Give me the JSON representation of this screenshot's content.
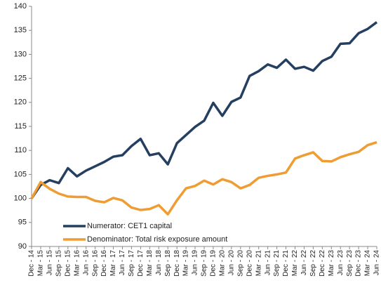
{
  "chart_data": {
    "type": "line",
    "categories": [
      "Dec - 14",
      "Mar - 15",
      "Jun - 15",
      "Sep - 15",
      "Dec - 15",
      "Mar - 16",
      "Jun - 16",
      "Sep - 16",
      "Dec - 16",
      "Mar - 17",
      "Jun - 17",
      "Sep - 17",
      "Dec - 17",
      "Mar - 18",
      "Jun - 18",
      "Sep - 18",
      "Dec - 18",
      "Mar - 19",
      "Jun - 19",
      "Sep - 19",
      "Dec - 19",
      "Mar - 20",
      "Jun - 20",
      "Sep - 20",
      "Dec - 20",
      "Mar - 21",
      "Jun - 21",
      "Sep - 21",
      "Dec - 21",
      "Mar - 22",
      "Jun - 22",
      "Sep - 22",
      "Dec - 22",
      "Mar - 23",
      "Jun - 23",
      "Sep - 23",
      "Dec - 23",
      "Mar - 24",
      "Jun - 24"
    ],
    "series": [
      {
        "name": "Numerator: CET1 capital",
        "color": "#243f60",
        "values": [
          100,
          102.8,
          103.8,
          103.2,
          106.3,
          104.6,
          105.8,
          106.7,
          107.6,
          108.7,
          109,
          110.9,
          112.4,
          109,
          109.4,
          107.1,
          111.5,
          113.2,
          114.9,
          116.2,
          119.9,
          117.2,
          120.1,
          121,
          125.5,
          126.5,
          127.9,
          127.2,
          128.9,
          127.0,
          127.4,
          126.6,
          128.6,
          129.5,
          132.2,
          132.3,
          134.4,
          135.3,
          136.7
        ]
      },
      {
        "name": "Denominator: Total risk exposure amount",
        "color": "#ef9c33",
        "values": [
          100,
          103.4,
          102,
          101,
          100.4,
          100.3,
          100.3,
          99.5,
          99.2,
          100.1,
          99.6,
          98.1,
          97.6,
          97.8,
          98.6,
          96.7,
          99.6,
          102.1,
          102.6,
          103.7,
          102.9,
          104.0,
          103.4,
          102.1,
          102.8,
          104.3,
          104.7,
          105.0,
          105.4,
          108.3,
          109.0,
          109.6,
          107.8,
          107.7,
          108.6,
          109.2,
          109.7,
          111.1,
          111.7
        ]
      }
    ],
    "ylim": [
      90,
      140
    ],
    "yticks": [
      90,
      95,
      100,
      105,
      110,
      115,
      120,
      125,
      130,
      135,
      140
    ],
    "grid": false,
    "legend": "lower left"
  }
}
